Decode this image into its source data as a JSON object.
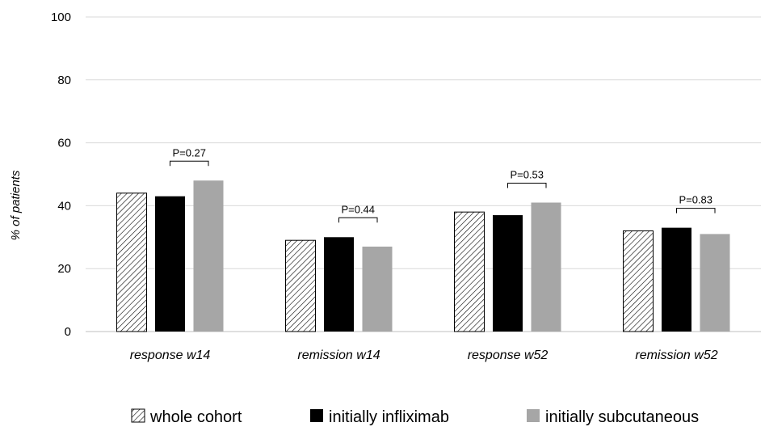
{
  "chart_data": {
    "type": "bar",
    "title": "",
    "xlabel": "",
    "ylabel": "% of patients",
    "ylim": [
      0,
      100
    ],
    "yticks": [
      0,
      20,
      40,
      60,
      80,
      100
    ],
    "grid": true,
    "legend_position": "bottom",
    "categories": [
      "response w14",
      "remission w14",
      "response w52",
      "remission w52"
    ],
    "series": [
      {
        "name": "whole cohort",
        "values": [
          44,
          29,
          38,
          32
        ],
        "color": "#ffffff",
        "pattern": "diagonal-hatch"
      },
      {
        "name": "initially infliximab",
        "values": [
          43,
          30,
          37,
          33
        ],
        "color": "#000000"
      },
      {
        "name": "initially subcutaneous",
        "values": [
          48,
          27,
          41,
          31
        ],
        "color": "#a6a6a6"
      }
    ],
    "annotations": [
      "P=0.27",
      "P=0.44",
      "P=0.53",
      "P=0.83"
    ]
  }
}
